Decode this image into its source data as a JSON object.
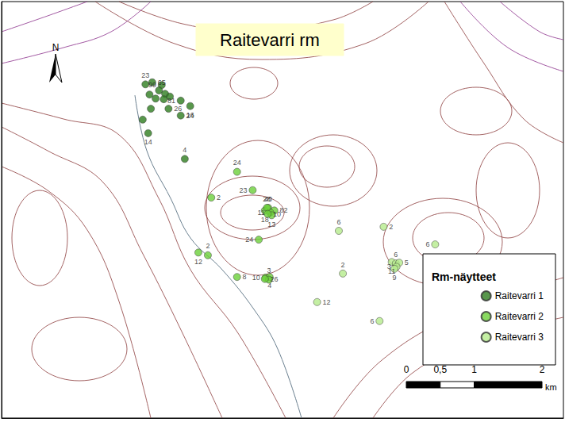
{
  "chart_data": {
    "type": "scatter",
    "title": "Raitevarri rm",
    "north_label": "N",
    "legend_title": "Rm-näytteet",
    "legend": "lower right",
    "tick_labels": false,
    "grid": false,
    "xlim": [
      0,
      8.28
    ],
    "ylim": [
      0,
      6.14
    ],
    "scale_bar": {
      "unit": "km",
      "ticks": [
        0,
        {
          "value": 0.5,
          "label": "0,5"
        },
        1,
        2
      ]
    },
    "series": [
      {
        "name": "Raitevarri 1",
        "color": "#2e7d1f",
        "marker": "circle",
        "values": [
          [
            2.12,
            4.92
          ],
          [
            2.22,
            4.95
          ],
          [
            2.36,
            4.91
          ],
          [
            2.32,
            4.83
          ],
          [
            2.41,
            4.78
          ],
          [
            2.48,
            4.74
          ],
          [
            2.18,
            4.77
          ],
          [
            2.27,
            4.71
          ],
          [
            2.39,
            4.7
          ],
          [
            2.46,
            4.56
          ],
          [
            2.64,
            4.68
          ],
          [
            2.78,
            4.6
          ],
          [
            2.2,
            4.56
          ],
          [
            2.64,
            4.46
          ],
          [
            2.08,
            4.4
          ],
          [
            2.16,
            4.2
          ],
          [
            2.7,
            3.82
          ]
        ],
        "labels": [
          23,
          65,
          99,
          null,
          null,
          null,
          null,
          null,
          null,
          26,
          81,
          16,
          null,
          24,
          null,
          14,
          4
        ]
      },
      {
        "name": "Raitevarri 2",
        "color": "#6bcf3a",
        "marker": "circle",
        "values": [
          [
            3.47,
            3.63
          ],
          [
            3.09,
            3.25
          ],
          [
            3.7,
            3.36
          ],
          [
            3.88,
            3.06
          ],
          [
            3.93,
            3.1
          ],
          [
            4.02,
            3.06
          ],
          [
            3.96,
            3.03
          ],
          [
            3.98,
            2.99
          ],
          [
            3.91,
            3.1
          ],
          [
            3.92,
            3.01
          ],
          [
            3.79,
            2.63
          ],
          [
            2.9,
            2.44
          ],
          [
            3.04,
            2.4
          ],
          [
            3.47,
            2.08
          ],
          [
            3.89,
            2.07
          ],
          [
            3.95,
            2.08
          ],
          [
            3.94,
            2.04
          ],
          [
            3.88,
            2.05
          ]
        ],
        "labels": [
          24,
          2,
          23,
          18,
          40,
          82,
          11,
          13,
          28,
          10,
          24,
          12,
          2,
          8,
          10,
          4,
          3,
          26
        ]
      },
      {
        "name": "Raitevarri 3",
        "color": "#b5eb8c",
        "marker": "circle",
        "values": [
          [
            4.97,
            2.76
          ],
          [
            5.63,
            2.82
          ],
          [
            6.39,
            2.56
          ],
          [
            5.75,
            2.3
          ],
          [
            5.81,
            2.28
          ],
          [
            5.86,
            2.29
          ],
          [
            5.82,
            2.23
          ],
          [
            5.79,
            2.2
          ],
          [
            5.03,
            2.13
          ],
          [
            4.65,
            1.71
          ],
          [
            5.57,
            1.43
          ]
        ],
        "labels": [
          6,
          2,
          6,
          11,
          6,
          5,
          3,
          9,
          2,
          12,
          6
        ]
      }
    ]
  }
}
